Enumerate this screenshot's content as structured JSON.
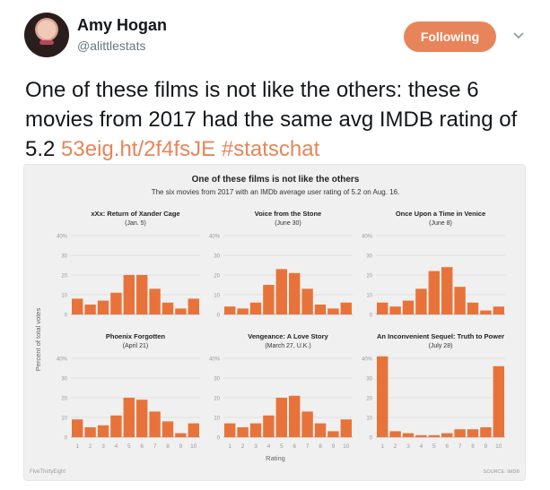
{
  "tweet": {
    "author_name": "Amy Hogan",
    "author_handle": "@alittlestats",
    "follow_label": "Following",
    "text_main": "One of these films is not like the others: these 6 movies from 2017 had the same avg IMDB rating of 5.2",
    "link": "53eig.ht/2f4fsJE",
    "hashtag": "#statschat"
  },
  "icons": {
    "menu": "chevron-down-icon"
  },
  "colors": {
    "accent": "#e8845a",
    "bar": "#e8733a",
    "panel": "#f0f0f0"
  },
  "chart": {
    "title": "One of these films is not like the others",
    "subtitle": "The six movies from 2017 with an IMDb average user rating of 5.2 on Aug. 16.",
    "ylabel": "Percent of total votes",
    "xlabel": "Rating",
    "footer_left": "FiveThirtyEight",
    "footer_right": "SOURCE: IMDB"
  },
  "chart_data": {
    "type": "bar",
    "categories": [
      "1",
      "2",
      "3",
      "4",
      "5",
      "6",
      "7",
      "8",
      "9",
      "10"
    ],
    "ylim": [
      0,
      40
    ],
    "yticks": [
      "0",
      "10",
      "20",
      "30",
      "40%"
    ],
    "grid": true,
    "panels": [
      {
        "title": "xXx: Return of Xander Cage",
        "subtitle": "(Jan. 5)",
        "values": [
          8,
          5,
          7,
          11,
          20,
          20,
          13,
          6,
          3,
          8
        ]
      },
      {
        "title": "Voice from the Stone",
        "subtitle": "(June 30)",
        "values": [
          4,
          3,
          6,
          15,
          23,
          21,
          13,
          5,
          3,
          6
        ]
      },
      {
        "title": "Once Upon a Time in Venice",
        "subtitle": "(June 8)",
        "values": [
          6,
          4,
          7,
          13,
          22,
          24,
          14,
          6,
          2,
          4
        ]
      },
      {
        "title": "Phoenix Forgotten",
        "subtitle": "(April 21)",
        "values": [
          9,
          5,
          6,
          11,
          20,
          19,
          13,
          8,
          2,
          7
        ]
      },
      {
        "title": "Vengeance: A Love Story",
        "subtitle": "(March 27, U.K.)",
        "values": [
          7,
          5,
          7,
          11,
          20,
          21,
          13,
          7,
          3,
          9
        ]
      },
      {
        "title": "An Inconvenient Sequel: Truth to Power",
        "subtitle": "(July 28)",
        "values": [
          41,
          3,
          2,
          1,
          1,
          2,
          4,
          4,
          5,
          36
        ]
      }
    ]
  }
}
